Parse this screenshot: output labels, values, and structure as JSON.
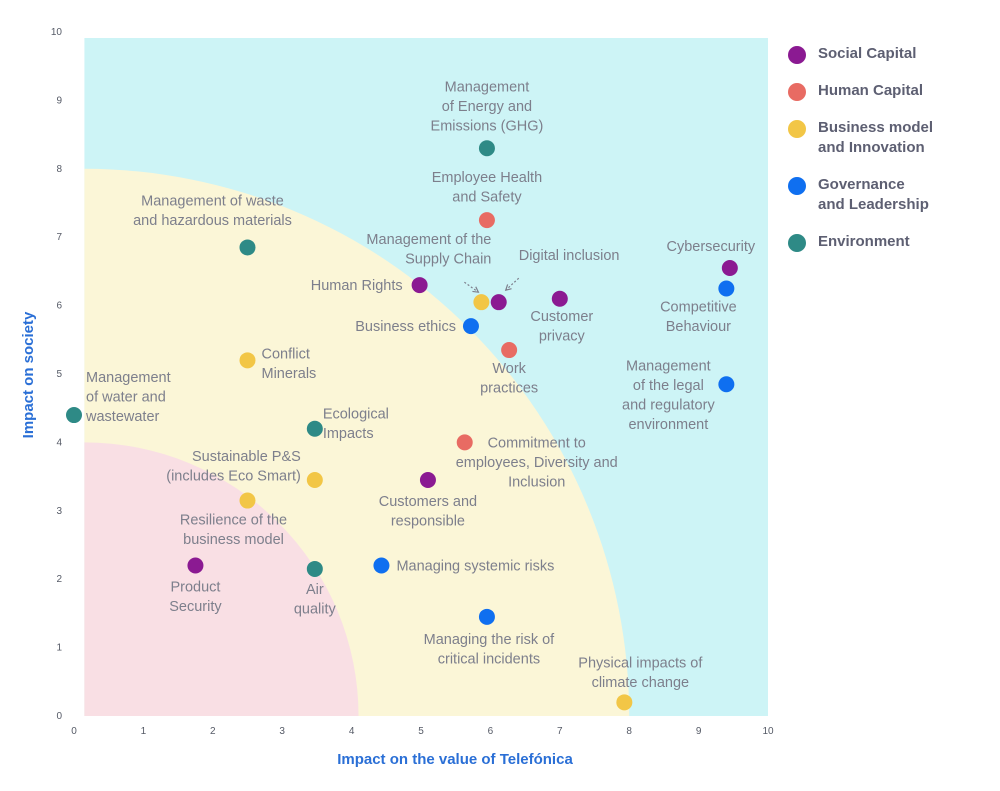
{
  "chart_data": {
    "type": "scatter",
    "title": "",
    "xlabel": "Impact on the value of Telefónica",
    "ylabel": "Impact on society",
    "xlim": [
      0,
      10
    ],
    "ylim": [
      0,
      10
    ],
    "xticks": [
      "0",
      "1",
      "2",
      "3",
      "4",
      "5",
      "6",
      "7",
      "8",
      "9",
      "10"
    ],
    "yticks": [
      "0",
      "1",
      "2",
      "3",
      "4",
      "5",
      "6",
      "7",
      "8",
      "9",
      "10"
    ],
    "grid": false,
    "legend_position": "right",
    "zones": [
      {
        "name": "high",
        "color": "#cdf4f6",
        "shape": "rectangle",
        "x_range": [
          0.15,
          10
        ],
        "y_range": [
          0,
          10
        ]
      },
      {
        "name": "medium",
        "color": "#fbf6d7",
        "shape": "quarter-ellipse",
        "x_radius": 8.0,
        "y_radius": 8.0
      },
      {
        "name": "low",
        "color": "#f9dfe4",
        "shape": "quarter-ellipse",
        "x_radius": 4.1,
        "y_radius": 4.0
      }
    ],
    "series": [
      {
        "name": "Social Capital",
        "color": "#8b1a92",
        "legend": "Social Capital"
      },
      {
        "name": "Human Capital",
        "color": "#e86b63",
        "legend": "Human Capital"
      },
      {
        "name": "Business model and Innovation",
        "color": "#f2c646",
        "legend": "Business model\nand Innovation"
      },
      {
        "name": "Governance and Leadership",
        "color": "#0f6ff0",
        "legend": "Governance\nand Leadership"
      },
      {
        "name": "Environment",
        "color": "#2e8a86",
        "legend": "Environment"
      }
    ],
    "points": [
      {
        "label": "Management\nof Energy and\nEmissions (GHG)",
        "x": 5.95,
        "y": 8.3,
        "series": 4,
        "anchor": "middle",
        "dx": 0,
        "dy": -57
      },
      {
        "label": "Employee Health\nand Safety",
        "x": 5.95,
        "y": 7.25,
        "series": 1,
        "anchor": "middle",
        "dx": 0,
        "dy": -38
      },
      {
        "label": "Management of waste\nand hazardous materials",
        "x": 2.5,
        "y": 6.85,
        "series": 4,
        "anchor": "middle",
        "dx": -35,
        "dy": -42
      },
      {
        "label": "Management of the\nSupply Chain",
        "x": 5.87,
        "y": 6.05,
        "series": 2,
        "anchor": "end",
        "dx": 10,
        "dy": -58
      },
      {
        "label": "Digital inclusion",
        "x": 6.12,
        "y": 6.05,
        "series": 0,
        "anchor": "start",
        "dx": 20,
        "dy": -42
      },
      {
        "label": "Human Rights",
        "x": 4.98,
        "y": 6.3,
        "series": 0,
        "anchor": "end",
        "dx": -17,
        "dy": 5
      },
      {
        "label": "Customer\nprivacy",
        "x": 7.0,
        "y": 6.1,
        "series": 0,
        "anchor": "middle",
        "dx": 2,
        "dy": 22
      },
      {
        "label": "Cybersecurity",
        "x": 9.45,
        "y": 6.55,
        "series": 0,
        "anchor": "middle",
        "dx": -19,
        "dy": -17
      },
      {
        "label": "Competitive\nBehaviour",
        "x": 9.4,
        "y": 6.25,
        "series": 3,
        "anchor": "middle",
        "dx": -28,
        "dy": 23
      },
      {
        "label": "Business ethics",
        "x": 5.72,
        "y": 5.7,
        "series": 3,
        "anchor": "end",
        "dx": -15,
        "dy": 5
      },
      {
        "label": "Work\npractices",
        "x": 6.27,
        "y": 5.35,
        "series": 1,
        "anchor": "middle",
        "dx": 0,
        "dy": 23
      },
      {
        "label": "Conflict\nMinerals",
        "x": 2.5,
        "y": 5.2,
        "series": 2,
        "anchor": "start",
        "dx": 14,
        "dy": -2
      },
      {
        "label": "Management\nof the legal\nand regulatory\nenvironment",
        "x": 9.4,
        "y": 4.85,
        "series": 3,
        "anchor": "middle",
        "dx": -58,
        "dy": -14
      },
      {
        "label": "Management\nof water and\nwastewater",
        "x": 0.0,
        "y": 4.4,
        "series": 4,
        "anchor": "start",
        "dx": 12,
        "dy": -33
      },
      {
        "label": "Ecological\nImpacts",
        "x": 3.47,
        "y": 4.2,
        "series": 4,
        "anchor": "start",
        "dx": 8,
        "dy": -10
      },
      {
        "label": "Commitment to\nemployees, Diversity and\nInclusion",
        "x": 5.63,
        "y": 4.0,
        "series": 1,
        "anchor": "middle",
        "dx": 72,
        "dy": 5
      },
      {
        "label": "Sustainable P&S\n(includes Eco Smart)",
        "x": 3.47,
        "y": 3.45,
        "series": 2,
        "anchor": "end",
        "dx": -14,
        "dy": -19
      },
      {
        "label": "Customers and\nresponsible",
        "x": 5.1,
        "y": 3.45,
        "series": 0,
        "anchor": "middle",
        "dx": 0,
        "dy": 26
      },
      {
        "label": "Resilience of the\nbusiness model",
        "x": 2.5,
        "y": 3.15,
        "series": 2,
        "anchor": "middle",
        "dx": -14,
        "dy": 24
      },
      {
        "label": "Product\nSecurity",
        "x": 1.75,
        "y": 2.2,
        "series": 0,
        "anchor": "middle",
        "dx": 0,
        "dy": 26
      },
      {
        "label": "Air\nquality",
        "x": 3.47,
        "y": 2.15,
        "series": 4,
        "anchor": "middle",
        "dx": 0,
        "dy": 25
      },
      {
        "label": "Managing systemic risks",
        "x": 4.43,
        "y": 2.2,
        "series": 3,
        "anchor": "start",
        "dx": 15,
        "dy": 5
      },
      {
        "label": "Managing the risk of\ncritical incidents",
        "x": 5.95,
        "y": 1.45,
        "series": 3,
        "anchor": "middle",
        "dx": 2,
        "dy": 27
      },
      {
        "label": "Physical impacts of\nclimate change",
        "x": 7.93,
        "y": 0.2,
        "series": 2,
        "anchor": "middle",
        "dx": 16,
        "dy": -35
      }
    ],
    "arrows": [
      {
        "from_point": 3,
        "from_dx": -17,
        "from_dy": -20,
        "to_dx": -3,
        "to_dy": -10
      },
      {
        "from_point": 4,
        "from_dx": 20,
        "from_dy": -24,
        "to_dx": 7,
        "to_dy": -12
      }
    ]
  }
}
